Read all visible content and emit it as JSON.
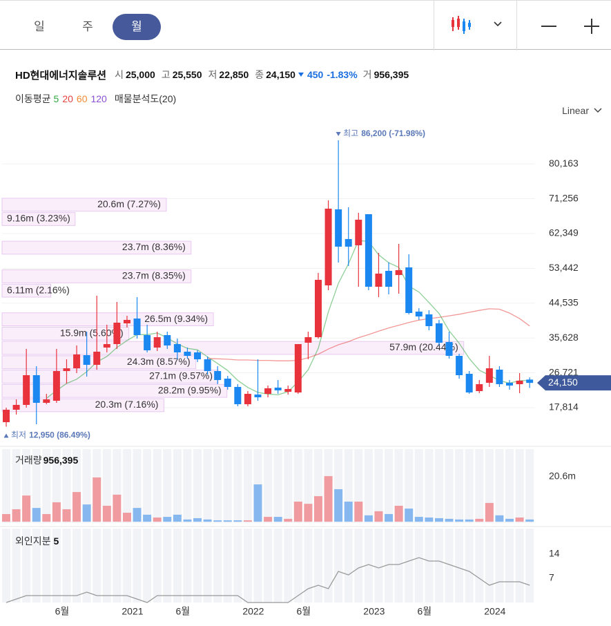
{
  "header": {
    "tabs": [
      "일",
      "주",
      "월"
    ]
  },
  "quote": {
    "name": "HD현대에너지솔루션",
    "fields": [
      {
        "label": "시",
        "value": "25,000"
      },
      {
        "label": "고",
        "value": "25,550"
      },
      {
        "label": "저",
        "value": "22,850"
      },
      {
        "label": "종",
        "value": "24,150"
      }
    ],
    "change": "450",
    "change_rate": "-1.83%",
    "volume_label": "거",
    "volume": "956,395"
  },
  "indicators": {
    "label": "이동평균"
  },
  "chart_data": [
    {
      "type": "candlestick",
      "scale_label": "Linear",
      "categories": [
        null,
        null,
        null,
        null,
        null,
        "6월",
        null,
        null,
        null,
        null,
        null,
        null,
        "2021",
        null,
        null,
        null,
        null,
        "6월",
        null,
        null,
        null,
        null,
        null,
        null,
        "2022",
        null,
        null,
        null,
        null,
        "6월",
        null,
        null,
        null,
        null,
        null,
        null,
        "2023",
        null,
        null,
        null,
        null,
        "6월",
        null,
        null,
        null,
        null,
        null,
        null,
        "2024",
        null,
        null,
        null,
        null
      ],
      "open": [
        14103,
        17284,
        18521,
        26121,
        19051,
        19581,
        27181,
        27888,
        31245,
        28772,
        33190,
        34074,
        39376,
        40613,
        36372,
        33190,
        36372,
        34074,
        32130,
        31953,
        30185,
        27181,
        25237,
        23116,
        18698,
        21172,
        21349,
        22940,
        21879,
        21702,
        34428,
        35842,
        49097,
        68540,
        60941,
        59350,
        67302,
        48744,
        52808,
        51748,
        53692,
        42380,
        41673,
        39376,
        34604,
        31069,
        26474,
        22055,
        24177,
        27534,
        24177,
        23823,
        25000
      ],
      "high": [
        17814,
        19935,
        32837,
        28418,
        21349,
        32837,
        30185,
        33720,
        37256,
        46446,
        39023,
        44855,
        41320,
        46093,
        39023,
        37256,
        37256,
        35488,
        33190,
        32484,
        30892,
        28418,
        25944,
        23823,
        22055,
        30185,
        23470,
        24884,
        23470,
        34074,
        37256,
        52278,
        70837,
        86200,
        69070,
        67655,
        67302,
        57403,
        55000,
        59704,
        57050,
        43264,
        42734,
        40260,
        37256,
        31600,
        27181,
        24884,
        31069,
        28418,
        24884,
        26650,
        25550
      ],
      "low": [
        12950,
        16046,
        17814,
        13572,
        18698,
        19051,
        24000,
        26651,
        25767,
        27534,
        31953,
        32837,
        38316,
        35488,
        31953,
        32307,
        32837,
        30185,
        30362,
        29478,
        26297,
        23823,
        22409,
        18168,
        18168,
        19581,
        20465,
        21349,
        21172,
        21349,
        30185,
        35488,
        47860,
        54930,
        54046,
        48744,
        47860,
        46093,
        46800,
        46976,
        41673,
        40260,
        37609,
        33720,
        30362,
        25237,
        21349,
        21525,
        23116,
        23116,
        22409,
        21525,
        22850
      ],
      "close": [
        17284,
        18521,
        26121,
        19051,
        19935,
        27181,
        27888,
        31422,
        28772,
        32130,
        34074,
        39553,
        40260,
        36372,
        32484,
        35842,
        33720,
        31953,
        31069,
        30185,
        27181,
        24884,
        23116,
        18698,
        21349,
        20465,
        22763,
        22232,
        22586,
        34074,
        35842,
        50511,
        68716,
        58997,
        58997,
        65888,
        48744,
        52101,
        48744,
        52985,
        42027,
        41143,
        38669,
        34428,
        31069,
        26121,
        21702,
        23823,
        27888,
        23823,
        23470,
        24707,
        24150
      ],
      "up_color": "#e8323c",
      "down_color": "#1a88f0",
      "ylim": [
        8977,
        90274
      ],
      "yticks": [
        {
          "value": 17814,
          "label": "17,814"
        },
        {
          "value": 26721,
          "label": "26,721"
        },
        {
          "value": 35628,
          "label": "35,628"
        },
        {
          "value": 44535,
          "label": "44,535"
        },
        {
          "value": 53442,
          "label": "53,442"
        },
        {
          "value": 62349,
          "label": "62,349"
        },
        {
          "value": 71256,
          "label": "71,256"
        },
        {
          "value": 80163,
          "label": "80,163"
        }
      ],
      "grid": true,
      "series": [
        {
          "name": "5",
          "color": "#2fa83f",
          "values": [
            null,
            null,
            null,
            null,
            20200,
            22200,
            24000,
            25100,
            27000,
            29500,
            30900,
            33200,
            35000,
            36500,
            36500,
            36900,
            35700,
            34100,
            33000,
            32600,
            30800,
            29100,
            27300,
            24800,
            23000,
            21700,
            21300,
            21100,
            21900,
            24400,
            27500,
            33000,
            42300,
            49600,
            54600,
            60600,
            60300,
            56900,
            54900,
            53700,
            48900,
            47400,
            44700,
            41900,
            37500,
            34300,
            30400,
            27400,
            26100,
            24700,
            24100,
            24700,
            24800
          ]
        },
        {
          "name": "20",
          "color": "#e8423f",
          "values": [
            null,
            null,
            null,
            null,
            null,
            null,
            null,
            null,
            null,
            null,
            null,
            null,
            null,
            null,
            null,
            null,
            null,
            null,
            null,
            null,
            30400,
            30300,
            30200,
            30000,
            30000,
            29900,
            29900,
            29800,
            29800,
            29900,
            30600,
            31500,
            32800,
            33900,
            34700,
            35700,
            36500,
            37400,
            38200,
            38900,
            39600,
            40200,
            40600,
            40900,
            41300,
            41700,
            42200,
            42700,
            43100,
            43000,
            42000,
            40600,
            38700
          ]
        },
        {
          "name": "60",
          "color": "#ef8a32",
          "values": [
            null,
            null,
            null,
            null,
            null,
            null,
            null,
            null,
            null,
            null,
            null,
            null,
            null,
            null,
            null,
            null,
            null,
            null,
            null,
            null,
            null,
            null,
            null,
            null,
            null,
            null,
            null,
            null,
            null,
            null,
            null,
            null,
            null,
            null,
            null,
            null,
            null,
            null,
            null,
            null,
            null,
            null,
            null,
            null,
            null,
            null,
            null,
            null,
            null,
            null,
            null,
            null,
            null
          ]
        },
        {
          "name": "120",
          "color": "#8a4fd6",
          "values": [
            null,
            null,
            null,
            null,
            null,
            null,
            null,
            null,
            null,
            null,
            null,
            null,
            null,
            null,
            null,
            null,
            null,
            null,
            null,
            null,
            null,
            null,
            null,
            null,
            null,
            null,
            null,
            null,
            null,
            null,
            null,
            null,
            null,
            null,
            null,
            null,
            null,
            null,
            null,
            null,
            null,
            null,
            null,
            null,
            null,
            null,
            null,
            null,
            null,
            null,
            null,
            null,
            null
          ]
        }
      ],
      "profile": {
        "name": "매물분석도(20)",
        "bins": [
          12950,
          16612.5,
          20275,
          23937.5,
          27600,
          31262.5,
          34925,
          38587.5,
          42250,
          45912.5,
          49575,
          53237.5,
          56900,
          60562.5,
          64225,
          67887.5,
          71550,
          75212.5,
          78875,
          82537.5,
          86200
        ],
        "values": [
          null,
          20.3,
          28.2,
          27.1,
          24.3,
          57.9,
          15.9,
          26.5,
          null,
          6.11,
          23.7,
          null,
          23.7,
          null,
          9.16,
          20.6,
          null,
          null,
          null,
          null
        ],
        "value_labels": [
          null,
          "20.3m (7.16%)",
          "28.2m (9.95%)",
          "27.1m (9.57%)",
          "24.3m (8.57%)",
          "57.9m (20.44%)",
          "15.9m (5.60%)",
          "26.5m (9.34%)",
          null,
          "6.11m (2.16%)",
          "23.7m (8.35%)",
          null,
          "23.7m (8.36%)",
          null,
          "9.16m (3.23%)",
          "20.6m (7.27%)",
          null,
          null,
          null,
          null
        ]
      },
      "high_note": {
        "label": "최고",
        "text": "86,200 (-71.98%)"
      },
      "low_note": {
        "label": "최저",
        "text": "12,950 (86.49%)"
      },
      "last_price": {
        "value": 24150,
        "label": "24,150"
      }
    },
    {
      "type": "bar",
      "title": "거래량",
      "title_value": "956,395",
      "values": [
        3.5,
        5.7,
        12,
        6.3,
        3.5,
        8.9,
        5.7,
        13.6,
        7.9,
        20.3,
        7.3,
        12.4,
        4.1,
        6.3,
        3.2,
        1.9,
        2.2,
        3.2,
        1.0,
        1.6,
        1.0,
        0.6,
        0.6,
        0.6,
        0.6,
        17.1,
        2.2,
        2.2,
        1.3,
        9.2,
        8.2,
        11.7,
        20.9,
        14.9,
        9.2,
        9.2,
        2.9,
        4.8,
        3.5,
        7.3,
        6.0,
        2.2,
        1.9,
        1.6,
        1.3,
        1.0,
        1.0,
        1.3,
        8.6,
        2.9,
        1.3,
        1.9,
        1.0
      ],
      "up_color": "#ef9ba0",
      "down_color": "#86b8ef",
      "ylim": [
        0,
        33.3
      ],
      "yticks": [
        {
          "value": 20.6,
          "label": "20.6m"
        }
      ]
    },
    {
      "type": "line",
      "title": "외인지분",
      "values": [
        0,
        1,
        2,
        2,
        2,
        2,
        2,
        2,
        3,
        2,
        2,
        2,
        2,
        1,
        0,
        2,
        2,
        2,
        2,
        2,
        2,
        2,
        2,
        2,
        0,
        0,
        0,
        0,
        0,
        2,
        4,
        5,
        4,
        9,
        8,
        10,
        11,
        10,
        11,
        11,
        12,
        13,
        12,
        12,
        11,
        10,
        9,
        7,
        5,
        6,
        6,
        6,
        5
      ],
      "color": "#999999",
      "ylim": [
        0,
        21.4
      ],
      "yticks": [
        7,
        14
      ]
    }
  ]
}
